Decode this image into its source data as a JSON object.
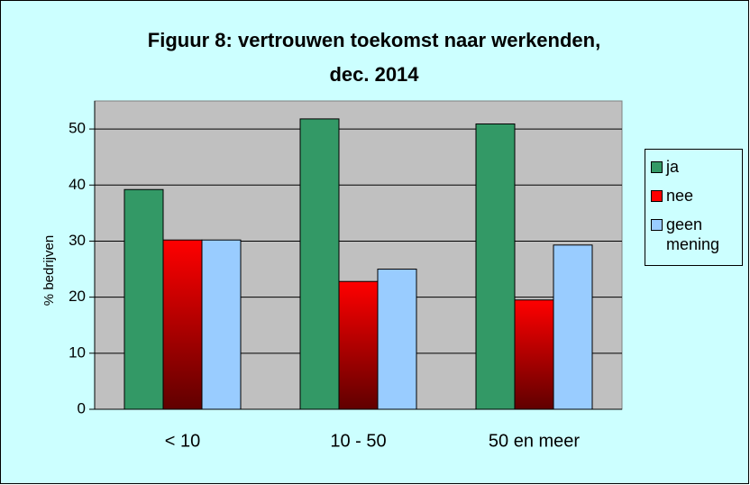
{
  "chart_data": {
    "type": "bar",
    "title": [
      "Figuur 8: vertrouwen toekomst naar werkenden,",
      "dec. 2014"
    ],
    "y_label": "% bedrijven",
    "categories": [
      "< 10",
      "10 - 50",
      "50 en meer"
    ],
    "series": [
      {
        "name": "ja",
        "color": "#339966",
        "values": [
          39.2,
          51.8,
          50.9
        ]
      },
      {
        "name": "nee",
        "color": "#ff0000",
        "values": [
          30.2,
          22.8,
          19.5
        ]
      },
      {
        "name": "geen mening",
        "color": "#99ccff",
        "values": [
          30.2,
          25.0,
          29.3
        ]
      }
    ],
    "ylim": [
      0,
      55
    ],
    "yticks": [
      0,
      10,
      20,
      30,
      40,
      50
    ],
    "grid": true,
    "legend": "right"
  }
}
